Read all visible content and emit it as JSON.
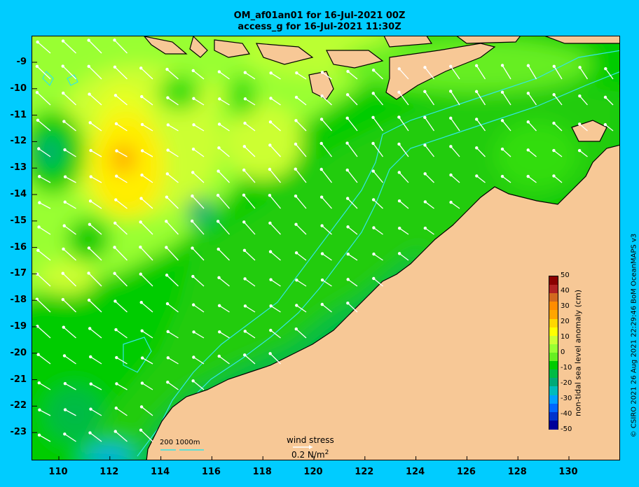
{
  "title_line1": "OM_af01an01 for 16-Jul-2021 00Z",
  "title_line2": "access_g for 16-Jul-2021 11:30Z",
  "lat_labels": [
    "-9",
    "-10",
    "-11",
    "-12",
    "-13",
    "-14",
    "-15",
    "-16",
    "-17",
    "-18",
    "-19",
    "-20",
    "-21",
    "-22",
    "-23"
  ],
  "lon_labels": [
    "110",
    "112",
    "114",
    "116",
    "118",
    "120",
    "122",
    "124",
    "126",
    "128",
    "130"
  ],
  "colorbar": {
    "label": "non-tidal sea level anomaly (cm)",
    "ticks": [
      "50",
      "40",
      "30",
      "20",
      "10",
      "0",
      "-10",
      "-20",
      "-30",
      "-40",
      "-50"
    ],
    "colors": [
      "#8b0000",
      "#b22222",
      "#d2691e",
      "#ff8c00",
      "#ffa500",
      "#ffd700",
      "#ffff00",
      "#ccff33",
      "#99ff33",
      "#66ee22",
      "#00cc00",
      "#00bb44",
      "#00aa77",
      "#00bbbb",
      "#00a0ff",
      "#0066ff",
      "#0033cc",
      "#000099"
    ]
  },
  "wind_stress": {
    "label": "wind stress",
    "value": "0.2 N/m",
    "unit_exponent": "2"
  },
  "isobath_label": "200  1000m",
  "credit": "© CSIRO 2021   26 Aug 2021 22:29:46 BoM OceanMAPS v3",
  "colors": {
    "background": "#00ccff",
    "land": "#f7c896",
    "isobath": "#33e6e6",
    "arrow": "#ffffff"
  }
}
